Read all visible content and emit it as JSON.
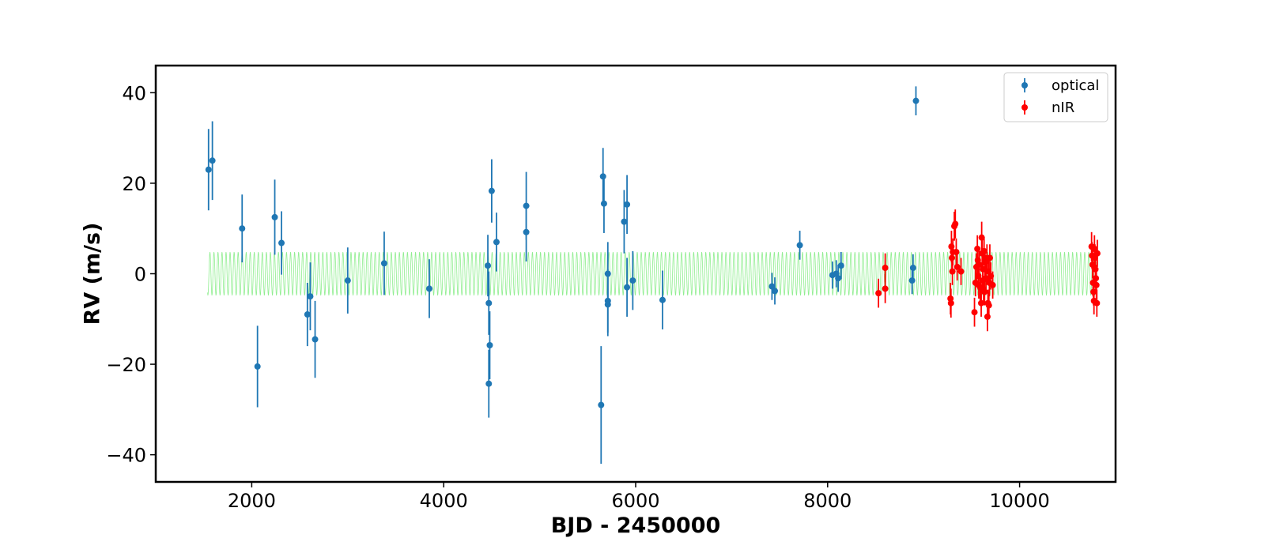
{
  "chart_data": {
    "type": "scatter",
    "xlabel": "BJD - 2450000",
    "ylabel": "RV (m/s)",
    "xlim": [
      1000,
      11000
    ],
    "ylim": [
      -46,
      46
    ],
    "xticks": [
      2000,
      4000,
      6000,
      8000,
      10000
    ],
    "yticks": [
      40,
      20,
      0,
      -20,
      -40
    ],
    "xtick_labels": [
      "2000",
      "4000",
      "6000",
      "8000",
      "10000"
    ],
    "ytick_labels": [
      "40",
      "20",
      "0",
      "−20",
      "−40"
    ],
    "grid": false,
    "legend_position": "top-right",
    "series": [
      {
        "name": "optical",
        "color": "#1f77b4",
        "points": [
          {
            "x": 1550,
            "y": 23.0,
            "err": 9.0
          },
          {
            "x": 1590,
            "y": 25.0,
            "err": 8.7
          },
          {
            "x": 1900,
            "y": 10.0,
            "err": 7.5
          },
          {
            "x": 2060,
            "y": -20.5,
            "err": 9.0
          },
          {
            "x": 2240,
            "y": 12.5,
            "err": 8.3
          },
          {
            "x": 2310,
            "y": 6.8,
            "err": 7.0
          },
          {
            "x": 2580,
            "y": -9.0,
            "err": 7.0
          },
          {
            "x": 2610,
            "y": -5.0,
            "err": 7.5
          },
          {
            "x": 2660,
            "y": -14.5,
            "err": 8.5
          },
          {
            "x": 3000,
            "y": -1.5,
            "err": 7.3
          },
          {
            "x": 3380,
            "y": 2.3,
            "err": 7.0
          },
          {
            "x": 3850,
            "y": -3.3,
            "err": 6.5
          },
          {
            "x": 4460,
            "y": 1.8,
            "err": 6.8
          },
          {
            "x": 4470,
            "y": -6.5,
            "err": 7.0
          },
          {
            "x": 4480,
            "y": -15.8,
            "err": 7.5
          },
          {
            "x": 4470,
            "y": -24.3,
            "err": 7.5
          },
          {
            "x": 4500,
            "y": 18.3,
            "err": 7.0
          },
          {
            "x": 4550,
            "y": 7.0,
            "err": 6.5
          },
          {
            "x": 4860,
            "y": 15.0,
            "err": 7.5
          },
          {
            "x": 4860,
            "y": 9.2,
            "err": 6.5
          },
          {
            "x": 5640,
            "y": -29.0,
            "err": 13.0
          },
          {
            "x": 5660,
            "y": 21.5,
            "err": 6.3
          },
          {
            "x": 5670,
            "y": 15.5,
            "err": 6.5
          },
          {
            "x": 5710,
            "y": 0.0,
            "err": 7.0
          },
          {
            "x": 5710,
            "y": -6.0,
            "err": 7.0
          },
          {
            "x": 5710,
            "y": -6.8,
            "err": 7.0
          },
          {
            "x": 5880,
            "y": 11.5,
            "err": 7.0
          },
          {
            "x": 5910,
            "y": 15.3,
            "err": 6.5
          },
          {
            "x": 5910,
            "y": -3.0,
            "err": 6.5
          },
          {
            "x": 5970,
            "y": -1.5,
            "err": 6.5
          },
          {
            "x": 6280,
            "y": -5.8,
            "err": 6.5
          },
          {
            "x": 7420,
            "y": -2.8,
            "err": 3.0
          },
          {
            "x": 7450,
            "y": -3.8,
            "err": 3.0
          },
          {
            "x": 7710,
            "y": 6.3,
            "err": 3.2
          },
          {
            "x": 8050,
            "y": -0.3,
            "err": 3.0
          },
          {
            "x": 8090,
            "y": 0.0,
            "err": 3.0
          },
          {
            "x": 8110,
            "y": -1.0,
            "err": 3.0
          },
          {
            "x": 8140,
            "y": 1.8,
            "err": 3.0
          },
          {
            "x": 8880,
            "y": -1.5,
            "err": 3.0
          },
          {
            "x": 8890,
            "y": 1.3,
            "err": 3.0
          },
          {
            "x": 8920,
            "y": 38.2,
            "err": 3.2
          }
        ]
      },
      {
        "name": "nIR",
        "color": "#ff0000",
        "points": [
          {
            "x": 8530,
            "y": -4.3,
            "err": 3.2
          },
          {
            "x": 8600,
            "y": -3.3,
            "err": 3.2
          },
          {
            "x": 8600,
            "y": 1.3,
            "err": 3.2
          },
          {
            "x": 9280,
            "y": -5.5,
            "err": 3.5
          },
          {
            "x": 9285,
            "y": -6.5,
            "err": 3.2
          },
          {
            "x": 9290,
            "y": 6.0,
            "err": 3.5
          },
          {
            "x": 9295,
            "y": 3.5,
            "err": 3.0
          },
          {
            "x": 9300,
            "y": 0.5,
            "err": 3.0
          },
          {
            "x": 9305,
            "y": 4.8,
            "err": 3.0
          },
          {
            "x": 9320,
            "y": 10.5,
            "err": 3.2
          },
          {
            "x": 9330,
            "y": 11.0,
            "err": 3.2
          },
          {
            "x": 9340,
            "y": 4.8,
            "err": 3.0
          },
          {
            "x": 9350,
            "y": 1.5,
            "err": 3.0
          },
          {
            "x": 9390,
            "y": 0.5,
            "err": 3.0
          },
          {
            "x": 9530,
            "y": -8.5,
            "err": 3.2
          },
          {
            "x": 9540,
            "y": -2.0,
            "err": 3.0
          },
          {
            "x": 9550,
            "y": 1.5,
            "err": 3.0
          },
          {
            "x": 9560,
            "y": 5.5,
            "err": 3.0
          },
          {
            "x": 9565,
            "y": 3.0,
            "err": 3.0
          },
          {
            "x": 9570,
            "y": -0.5,
            "err": 3.0
          },
          {
            "x": 9575,
            "y": -2.5,
            "err": 3.0
          },
          {
            "x": 9580,
            "y": 2.0,
            "err": 3.0
          },
          {
            "x": 9590,
            "y": -3.0,
            "err": 3.0
          },
          {
            "x": 9600,
            "y": -6.5,
            "err": 3.0
          },
          {
            "x": 9605,
            "y": 8.0,
            "err": 3.5
          },
          {
            "x": 9610,
            "y": 4.5,
            "err": 3.0
          },
          {
            "x": 9615,
            "y": -1.5,
            "err": 3.0
          },
          {
            "x": 9620,
            "y": 1.0,
            "err": 3.0
          },
          {
            "x": 9625,
            "y": -3.5,
            "err": 3.0
          },
          {
            "x": 9630,
            "y": 5.0,
            "err": 3.0
          },
          {
            "x": 9635,
            "y": -4.0,
            "err": 3.0
          },
          {
            "x": 9640,
            "y": 2.5,
            "err": 3.0
          },
          {
            "x": 9650,
            "y": -1.0,
            "err": 3.0
          },
          {
            "x": 9660,
            "y": 3.5,
            "err": 3.0
          },
          {
            "x": 9665,
            "y": -9.5,
            "err": 3.2
          },
          {
            "x": 9670,
            "y": -6.5,
            "err": 3.0
          },
          {
            "x": 9675,
            "y": 0.5,
            "err": 3.0
          },
          {
            "x": 9680,
            "y": -7.0,
            "err": 3.0
          },
          {
            "x": 9685,
            "y": -2.0,
            "err": 3.0
          },
          {
            "x": 9690,
            "y": 3.5,
            "err": 3.0
          },
          {
            "x": 9700,
            "y": -0.5,
            "err": 3.0
          },
          {
            "x": 9720,
            "y": -2.5,
            "err": 3.0
          },
          {
            "x": 10750,
            "y": 6.0,
            "err": 3.2
          },
          {
            "x": 10755,
            "y": 4.0,
            "err": 3.0
          },
          {
            "x": 10760,
            "y": 2.0,
            "err": 3.0
          },
          {
            "x": 10765,
            "y": -2.0,
            "err": 3.0
          },
          {
            "x": 10770,
            "y": -4.0,
            "err": 3.0
          },
          {
            "x": 10775,
            "y": -6.0,
            "err": 3.0
          },
          {
            "x": 10780,
            "y": 5.5,
            "err": 3.0
          },
          {
            "x": 10785,
            "y": 3.5,
            "err": 3.0
          },
          {
            "x": 10790,
            "y": 1.0,
            "err": 3.0
          },
          {
            "x": 10795,
            "y": -1.0,
            "err": 3.0
          },
          {
            "x": 10800,
            "y": -2.5,
            "err": 3.0
          },
          {
            "x": 10805,
            "y": -6.5,
            "err": 3.0
          },
          {
            "x": 10810,
            "y": 4.5,
            "err": 3.0
          }
        ]
      }
    ],
    "model": {
      "color": "#90ee90",
      "x_range": [
        1540,
        10800
      ],
      "amplitude": 4.8,
      "period_days": 42
    }
  }
}
